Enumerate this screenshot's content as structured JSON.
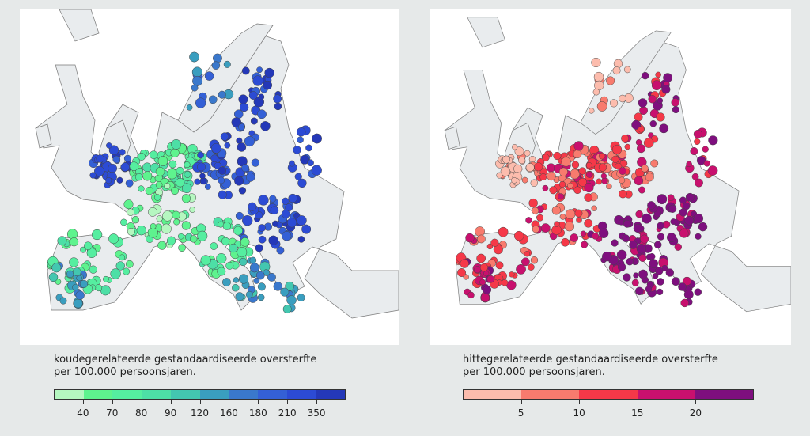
{
  "left_map": {
    "legend_title_line1": "koudegerelateerde gestandaardiseerde oversterfte",
    "legend_title_line2": "per 100.000 persoonsjaren.",
    "ticks": [
      "40",
      "70",
      "80",
      "90",
      "120",
      "160",
      "180",
      "210",
      "350"
    ],
    "colors": [
      "#b5f7c0",
      "#5ef38e",
      "#55eea0",
      "#4ddfa6",
      "#43c7b0",
      "#3a9ebf",
      "#3a78cc",
      "#3460d6",
      "#2c4bd4",
      "#2438b8"
    ]
  },
  "right_map": {
    "legend_title_line1": "hittegerelateerde gestandaardiseerde oversterfte",
    "legend_title_line2": "per 100.000 persoonsjaren.",
    "ticks": [
      "5",
      "10",
      "15",
      "20"
    ],
    "colors": [
      "#fcbcad",
      "#f87b6e",
      "#f53848",
      "#c8106e",
      "#7e0f7e"
    ]
  },
  "land_color": "#e9ecee"
}
